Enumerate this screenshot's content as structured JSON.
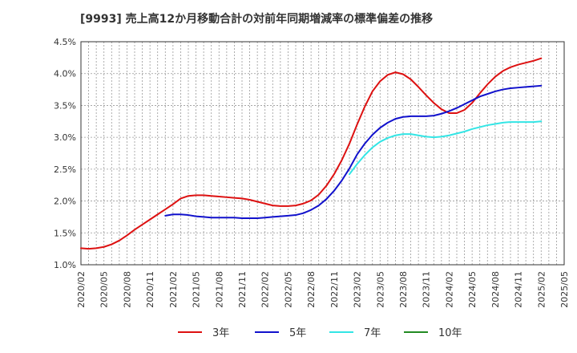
{
  "chart_data": {
    "type": "line",
    "title": "[9993]  売上高12か月移動合計の対前年同期増減率の標準偏差の推移",
    "xlabel": "",
    "ylabel": "",
    "ylim": [
      1.0,
      4.5
    ],
    "y_ticks": [
      "1.0%",
      "1.5%",
      "2.0%",
      "2.5%",
      "3.0%",
      "3.5%",
      "4.0%",
      "4.5%"
    ],
    "x_ticks": [
      "2020/02",
      "2020/05",
      "2020/08",
      "2020/11",
      "2021/02",
      "2021/05",
      "2021/08",
      "2021/11",
      "2022/02",
      "2022/05",
      "2022/08",
      "2022/11",
      "2023/02",
      "2023/05",
      "2023/08",
      "2023/11",
      "2024/02",
      "2024/05",
      "2024/08",
      "2024/11",
      "2025/02",
      "2025/05"
    ],
    "grid": true,
    "legend_position": "bottom",
    "series": [
      {
        "name": "3年",
        "color": "#dd1111",
        "points": [
          [
            "2020/02",
            1.26
          ],
          [
            "2020/03",
            1.25
          ],
          [
            "2020/04",
            1.26
          ],
          [
            "2020/05",
            1.28
          ],
          [
            "2020/06",
            1.32
          ],
          [
            "2020/07",
            1.38
          ],
          [
            "2020/08",
            1.46
          ],
          [
            "2020/09",
            1.55
          ],
          [
            "2020/10",
            1.63
          ],
          [
            "2020/11",
            1.71
          ],
          [
            "2020/12",
            1.79
          ],
          [
            "2021/01",
            1.87
          ],
          [
            "2021/02",
            1.95
          ],
          [
            "2021/03",
            2.04
          ],
          [
            "2021/04",
            2.08
          ],
          [
            "2021/05",
            2.09
          ],
          [
            "2021/06",
            2.09
          ],
          [
            "2021/07",
            2.08
          ],
          [
            "2021/08",
            2.07
          ],
          [
            "2021/09",
            2.06
          ],
          [
            "2021/10",
            2.05
          ],
          [
            "2021/11",
            2.04
          ],
          [
            "2021/12",
            2.02
          ],
          [
            "2022/01",
            1.99
          ],
          [
            "2022/02",
            1.96
          ],
          [
            "2022/03",
            1.93
          ],
          [
            "2022/04",
            1.92
          ],
          [
            "2022/05",
            1.92
          ],
          [
            "2022/06",
            1.93
          ],
          [
            "2022/07",
            1.96
          ],
          [
            "2022/08",
            2.01
          ],
          [
            "2022/09",
            2.1
          ],
          [
            "2022/10",
            2.24
          ],
          [
            "2022/11",
            2.42
          ],
          [
            "2022/12",
            2.64
          ],
          [
            "2023/01",
            2.9
          ],
          [
            "2023/02",
            3.2
          ],
          [
            "2023/03",
            3.48
          ],
          [
            "2023/04",
            3.72
          ],
          [
            "2023/05",
            3.88
          ],
          [
            "2023/06",
            3.98
          ],
          [
            "2023/07",
            4.02
          ],
          [
            "2023/08",
            3.99
          ],
          [
            "2023/09",
            3.91
          ],
          [
            "2023/10",
            3.79
          ],
          [
            "2023/11",
            3.66
          ],
          [
            "2023/12",
            3.54
          ],
          [
            "2024/01",
            3.44
          ],
          [
            "2024/02",
            3.38
          ],
          [
            "2024/03",
            3.38
          ],
          [
            "2024/04",
            3.43
          ],
          [
            "2024/05",
            3.54
          ],
          [
            "2024/06",
            3.69
          ],
          [
            "2024/07",
            3.83
          ],
          [
            "2024/08",
            3.95
          ],
          [
            "2024/09",
            4.04
          ],
          [
            "2024/10",
            4.1
          ],
          [
            "2024/11",
            4.14
          ],
          [
            "2024/12",
            4.17
          ],
          [
            "2025/01",
            4.2
          ],
          [
            "2025/02",
            4.24
          ]
        ]
      },
      {
        "name": "5年",
        "color": "#1111cc",
        "points": [
          [
            "2021/01",
            1.77
          ],
          [
            "2021/02",
            1.79
          ],
          [
            "2021/03",
            1.79
          ],
          [
            "2021/04",
            1.78
          ],
          [
            "2021/05",
            1.76
          ],
          [
            "2021/06",
            1.75
          ],
          [
            "2021/07",
            1.74
          ],
          [
            "2021/08",
            1.74
          ],
          [
            "2021/09",
            1.74
          ],
          [
            "2021/10",
            1.74
          ],
          [
            "2021/11",
            1.73
          ],
          [
            "2021/12",
            1.73
          ],
          [
            "2022/01",
            1.73
          ],
          [
            "2022/02",
            1.74
          ],
          [
            "2022/03",
            1.75
          ],
          [
            "2022/04",
            1.76
          ],
          [
            "2022/05",
            1.77
          ],
          [
            "2022/06",
            1.78
          ],
          [
            "2022/07",
            1.81
          ],
          [
            "2022/08",
            1.86
          ],
          [
            "2022/09",
            1.93
          ],
          [
            "2022/10",
            2.03
          ],
          [
            "2022/11",
            2.16
          ],
          [
            "2022/12",
            2.32
          ],
          [
            "2023/01",
            2.51
          ],
          [
            "2023/02",
            2.73
          ],
          [
            "2023/03",
            2.9
          ],
          [
            "2023/04",
            3.04
          ],
          [
            "2023/05",
            3.15
          ],
          [
            "2023/06",
            3.23
          ],
          [
            "2023/07",
            3.29
          ],
          [
            "2023/08",
            3.32
          ],
          [
            "2023/09",
            3.33
          ],
          [
            "2023/10",
            3.33
          ],
          [
            "2023/11",
            3.33
          ],
          [
            "2023/12",
            3.34
          ],
          [
            "2024/01",
            3.37
          ],
          [
            "2024/02",
            3.41
          ],
          [
            "2024/03",
            3.46
          ],
          [
            "2024/04",
            3.52
          ],
          [
            "2024/05",
            3.58
          ],
          [
            "2024/06",
            3.64
          ],
          [
            "2024/07",
            3.68
          ],
          [
            "2024/08",
            3.72
          ],
          [
            "2024/09",
            3.75
          ],
          [
            "2024/10",
            3.77
          ],
          [
            "2024/11",
            3.78
          ],
          [
            "2024/12",
            3.79
          ],
          [
            "2025/01",
            3.8
          ],
          [
            "2025/02",
            3.81
          ]
        ]
      },
      {
        "name": "7年",
        "color": "#33e5e5",
        "points": [
          [
            "2023/01",
            2.42
          ],
          [
            "2023/02",
            2.58
          ],
          [
            "2023/03",
            2.72
          ],
          [
            "2023/04",
            2.84
          ],
          [
            "2023/05",
            2.93
          ],
          [
            "2023/06",
            2.99
          ],
          [
            "2023/07",
            3.03
          ],
          [
            "2023/08",
            3.05
          ],
          [
            "2023/09",
            3.05
          ],
          [
            "2023/10",
            3.03
          ],
          [
            "2023/11",
            3.01
          ],
          [
            "2023/12",
            3.0
          ],
          [
            "2024/01",
            3.01
          ],
          [
            "2024/02",
            3.03
          ],
          [
            "2024/03",
            3.06
          ],
          [
            "2024/04",
            3.09
          ],
          [
            "2024/05",
            3.13
          ],
          [
            "2024/06",
            3.16
          ],
          [
            "2024/07",
            3.19
          ],
          [
            "2024/08",
            3.21
          ],
          [
            "2024/09",
            3.23
          ],
          [
            "2024/10",
            3.24
          ],
          [
            "2024/11",
            3.24
          ],
          [
            "2024/12",
            3.24
          ],
          [
            "2025/01",
            3.24
          ],
          [
            "2025/02",
            3.25
          ]
        ]
      },
      {
        "name": "10年",
        "color": "#228b22",
        "points": []
      }
    ]
  }
}
